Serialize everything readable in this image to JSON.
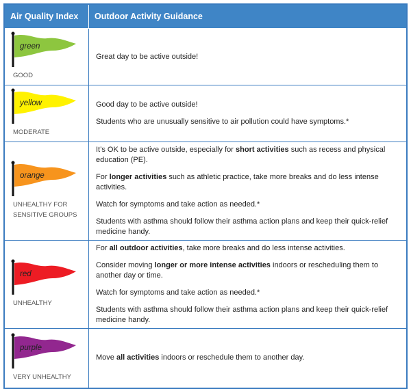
{
  "header": {
    "col1": "Air Quality Index",
    "col2": "Outdoor Activity Guidance"
  },
  "rows": [
    {
      "flag": "green",
      "color": "#8dc63f",
      "level": "GOOD",
      "guidance": [
        [
          {
            "text": "Great day to be active outside!",
            "bold": false
          }
        ]
      ]
    },
    {
      "flag": "yellow",
      "color": "#fff200",
      "level": "MODERATE",
      "guidance": [
        [
          {
            "text": "Good day to be active outside!",
            "bold": false
          }
        ],
        [
          {
            "text": "Students who are unusually sensitive to air pollution could have symptoms.*",
            "bold": false
          }
        ]
      ]
    },
    {
      "flag": "orange",
      "color": "#f7941d",
      "level": "UNHEALTHY FOR SENSITIVE GROUPS",
      "guidance": [
        [
          {
            "text": "It’s OK to be active outside, especially for ",
            "bold": false
          },
          {
            "text": "short activities",
            "bold": true
          },
          {
            "text": " such as recess and physical education (PE).",
            "bold": false
          }
        ],
        [
          {
            "text": "For ",
            "bold": false
          },
          {
            "text": "longer activities",
            "bold": true
          },
          {
            "text": " such as athletic practice, take more breaks and do less intense activities.",
            "bold": false
          }
        ],
        [
          {
            "text": "Watch for symptoms and take action as needed.*",
            "bold": false
          }
        ],
        [
          {
            "text": "Students with asthma should follow their asthma action plans and keep their quick-relief medicine handy.",
            "bold": false
          }
        ]
      ]
    },
    {
      "flag": "red",
      "color": "#ed1c24",
      "level": "UNHEALTHY",
      "guidance": [
        [
          {
            "text": "For ",
            "bold": false
          },
          {
            "text": "all outdoor activities",
            "bold": true
          },
          {
            "text": ", take more breaks and do less intense activities.",
            "bold": false
          }
        ],
        [
          {
            "text": "Consider moving ",
            "bold": false
          },
          {
            "text": "longer or more intense activities",
            "bold": true
          },
          {
            "text": " indoors or rescheduling them to another day or time.",
            "bold": false
          }
        ],
        [
          {
            "text": "Watch for symptoms and take action as needed.*",
            "bold": false
          }
        ],
        [
          {
            "text": "Students with asthma should follow their asthma action plans and keep their quick-relief medicine handy.",
            "bold": false
          }
        ]
      ]
    },
    {
      "flag": "purple",
      "color": "#92278f",
      "level": "VERY UNHEALTHY",
      "guidance": [
        [
          {
            "text": "Move ",
            "bold": false
          },
          {
            "text": "all activities",
            "bold": true
          },
          {
            "text": " indoors or reschedule them to another day.",
            "bold": false
          }
        ]
      ]
    }
  ]
}
